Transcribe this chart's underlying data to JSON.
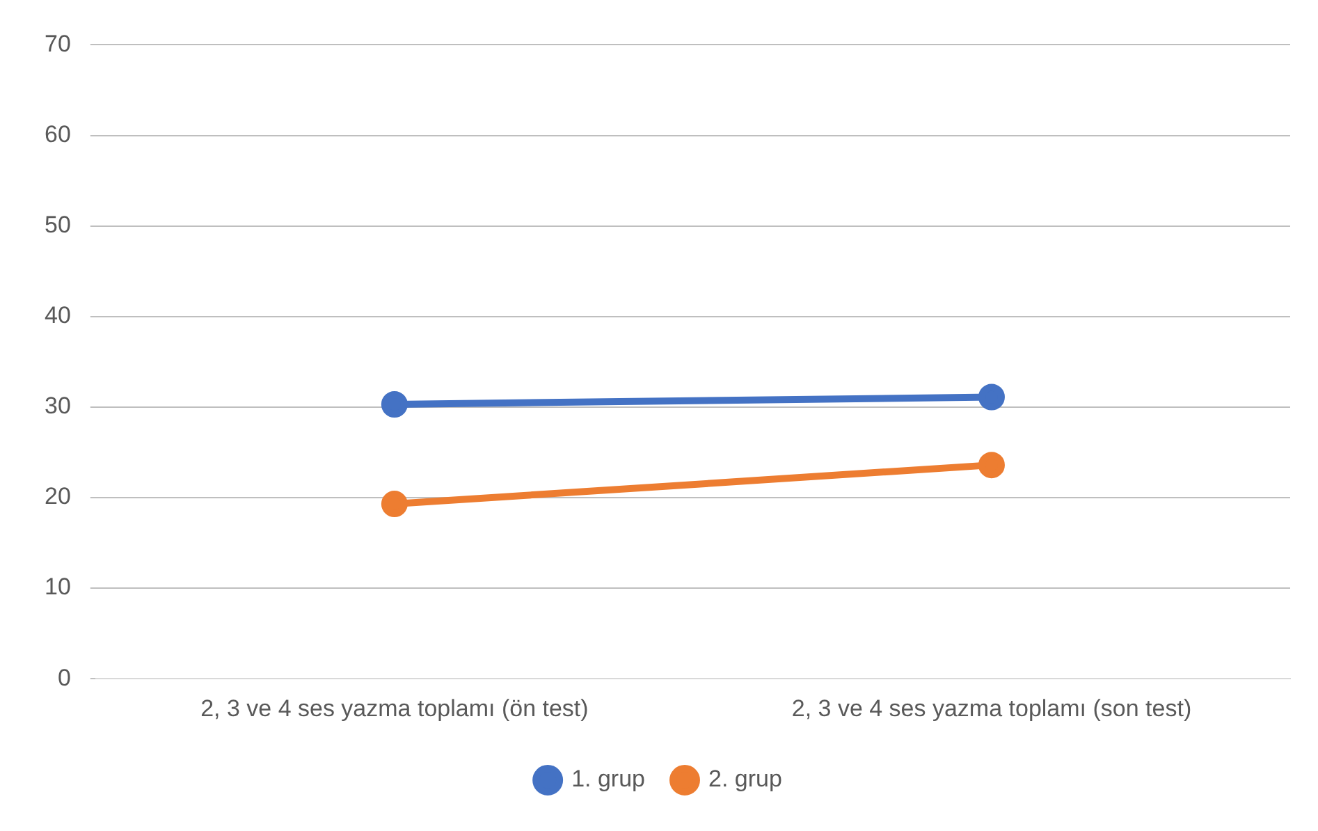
{
  "chart_data": {
    "type": "line",
    "categories": [
      "2, 3 ve 4 ses yazma toplamı (ön test)",
      "2, 3 ve 4 ses yazma toplamı (son test)"
    ],
    "series": [
      {
        "name": "1. grup",
        "color": "#4472c4",
        "values": [
          30.3,
          31.1
        ]
      },
      {
        "name": "2. grup",
        "color": "#ed7d31",
        "values": [
          19.3,
          23.6
        ]
      }
    ],
    "ylim": [
      0,
      70
    ],
    "yticks": [
      0,
      10,
      20,
      30,
      40,
      50,
      60,
      70
    ],
    "grid": "y",
    "legend": "bottom",
    "marker": "circle",
    "line_style": "solid"
  }
}
